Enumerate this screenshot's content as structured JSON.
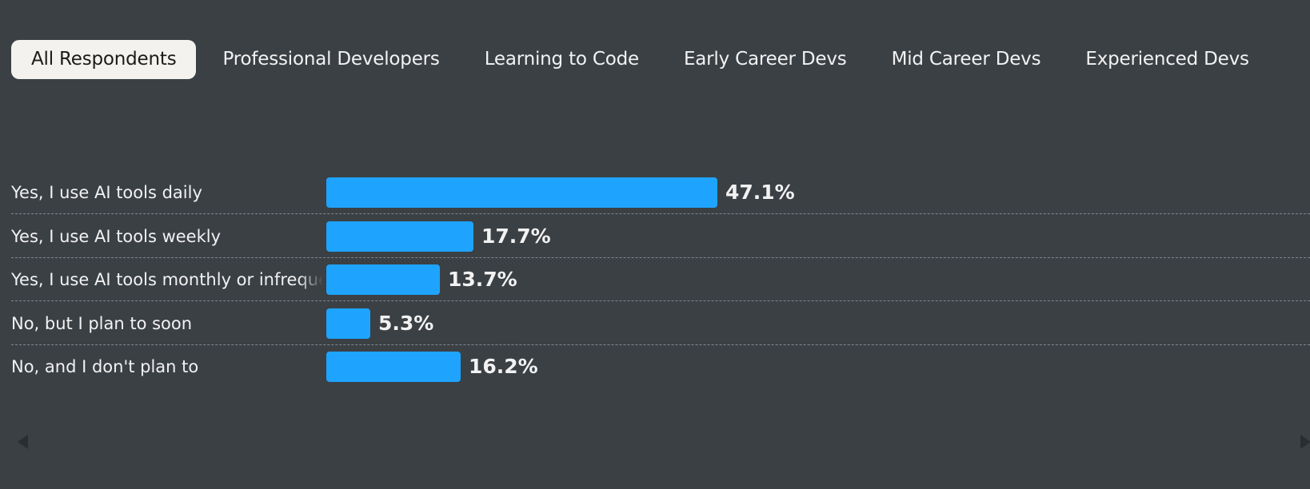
{
  "tabs": [
    {
      "label": "All Respondents",
      "active": true
    },
    {
      "label": "Professional Developers",
      "active": false
    },
    {
      "label": "Learning to Code",
      "active": false
    },
    {
      "label": "Early Career Devs",
      "active": false
    },
    {
      "label": "Mid Career Devs",
      "active": false
    },
    {
      "label": "Experienced Devs",
      "active": false
    }
  ],
  "chart_data": {
    "type": "bar",
    "orientation": "horizontal",
    "categories": [
      "Yes, I use AI tools daily",
      "Yes, I use AI tools weekly",
      "Yes, I use AI tools monthly or infrequently",
      "No, but I plan to soon",
      "No, and I don't plan to"
    ],
    "values": [
      47.1,
      17.7,
      13.7,
      5.3,
      16.2
    ],
    "value_labels": [
      "47.1%",
      "17.7%",
      "13.7%",
      "5.3%",
      "16.2%"
    ],
    "unit": "%",
    "title": "",
    "xlabel": "",
    "ylabel": "",
    "xlim": [
      0,
      100
    ],
    "grid": false,
    "bar_color": "#1ea4ff"
  },
  "colors": {
    "background": "#3b4045",
    "active_tab_bg": "#f3f2ee",
    "text": "#f2f2f2",
    "bar": "#1ea4ff"
  },
  "icons": {
    "scroll_left": "caret-left-icon",
    "scroll_right": "caret-right-icon"
  }
}
